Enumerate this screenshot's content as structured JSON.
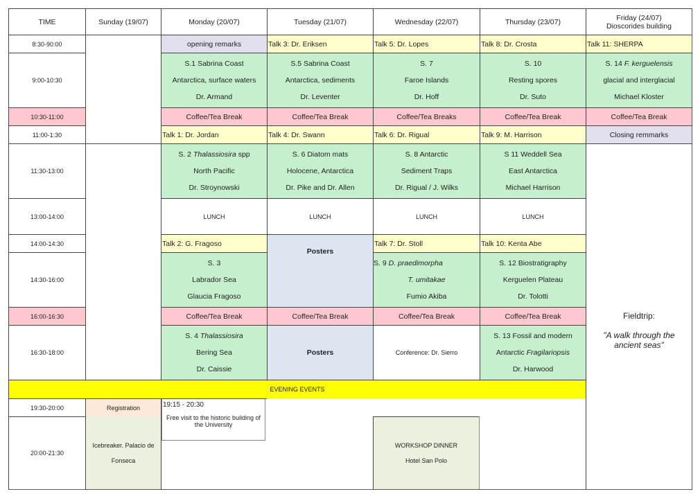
{
  "headers": [
    "TIME",
    "Sunday (19/07)",
    "Monday (20/07)",
    "Tuesday (21/07)",
    "Wednesday (22/07)",
    "Thursday (23/07)",
    "Friday (24/07)",
    "Dioscorides building"
  ],
  "times": [
    "8:30-90:00",
    "9:00-10:30",
    "10:30-11:00",
    "11:00-1:30",
    "11:30-13:00",
    "13:00-14:00",
    "14:00-14:30",
    "14:30-16:00",
    "16:00-16:30",
    "16:30-18:00",
    "19:30-20:00",
    "20:00-21:30"
  ],
  "r1": {
    "mon": "opening remarks",
    "tue": "Talk 3:  Dr. Eriksen",
    "wed": "Talk 5: Dr.   Lopes",
    "thu": "Talk 8: Dr. Crosta",
    "fri": "Talk 11:  SHERPA"
  },
  "r2": {
    "mon": [
      "S.1 Sabrina Coast",
      "Antarctica, surface waters",
      "Dr. Armand"
    ],
    "tue": [
      "S.5  Sabrina Coast",
      "Antarctica, sediments",
      "Dr. Leventer"
    ],
    "wed": [
      "S. 7",
      "Faroe Islands",
      "Dr. Hoff"
    ],
    "thu": [
      "S. 10",
      "Resting spores",
      "Dr. Suto"
    ],
    "fri": [
      "S. 14 ",
      "F. kerguelensis",
      "glacial and interglacial",
      "Michael Kloster"
    ]
  },
  "coffee": {
    "break": "Coffee/Tea  Break",
    "breaks": "Coffee/Tea  Breaks"
  },
  "r4": {
    "mon": "Talk 1: Dr. Jordan",
    "tue": "Talk 4:   Dr. Swann",
    "wed": "Talk 6:  Dr. Rigual",
    "thu": "Talk 9: M. Harrison",
    "fri": "Closing remmarks"
  },
  "r5": {
    "mon": [
      "S. 2 ",
      "Thalassiosira",
      " spp",
      "North Pacific",
      "Dr. Stroynowski"
    ],
    "tue": [
      "S. 6   Diatom mats",
      "Holocene, Antarctica",
      "Dr. Pike and Dr. Allen"
    ],
    "wed": [
      "S. 8 Antarctic",
      "Sediment Traps",
      "Dr. Rigual / J. Wilks"
    ],
    "thu": [
      "S 11 Weddell Sea",
      "East Antarctica",
      "Michael Harrison"
    ]
  },
  "lunch": "LUNCH",
  "r7": {
    "mon": "Talk 2: G. Fragoso",
    "wed": "Talk 7: Dr. Stoll",
    "thu": "Talk 10: Kenta Abe"
  },
  "posters": "Posters",
  "r8": {
    "mon": [
      "S. 3",
      "Labrador Sea",
      "Glaucia Fragoso"
    ],
    "wed": [
      "S. 9  ",
      "D. praedimorpha",
      "T. umitakae",
      "Fumio Akiba"
    ],
    "thu": [
      "S. 12 Biostratigraphy",
      "Kerguelen Plateau",
      "Dr. Tolotti"
    ]
  },
  "r10": {
    "mon": [
      "S. 4 ",
      "Thalassiosira",
      "Bering Sea",
      "Dr. Caissie"
    ],
    "wed": "Conference: Dr. Sierro",
    "thu": [
      "S. 13 Fossil and modern",
      "Antarctic  ",
      "Fragilariopsis",
      "Dr. Harwood"
    ]
  },
  "fieldtrip": {
    "title": "Fieldtrip:",
    "subtitle": "\"A walk through the ancient seas\""
  },
  "evening": "EVENING EVENTS",
  "registration": "Registration",
  "visit": {
    "time": "19:15 - 20:30",
    "text": "Free visit to the historic building of the University"
  },
  "icebreaker": [
    "Icebreaker. Palacio de",
    "Fonseca"
  ],
  "dinner": [
    "WORKSHOP DINNER",
    "Hotel San Polo"
  ],
  "colors": {
    "talk": "#ffffcc",
    "session": "#c6efce",
    "break": "#ffc7ce",
    "remarks": "#e1dfee",
    "posters": "#dce6f0",
    "evening": "#ffff00"
  }
}
